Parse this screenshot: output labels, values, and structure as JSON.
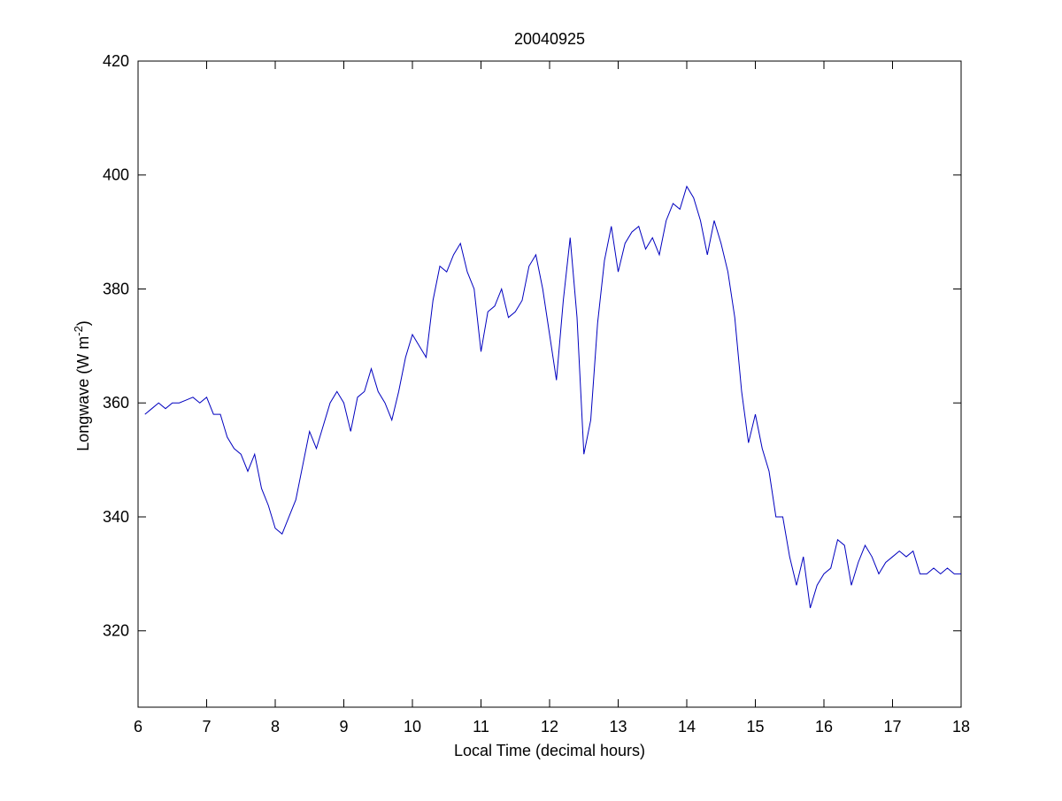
{
  "chart_data": {
    "type": "line",
    "title": "20040925",
    "xlabel": "Local Time (decimal hours)",
    "ylabel": {
      "text": "Longwave (W m",
      "superscript": "-2",
      "suffix": ")"
    },
    "x": [
      6.1,
      6.2,
      6.3,
      6.4,
      6.5,
      6.6,
      6.7,
      6.8,
      6.9,
      7.0,
      7.1,
      7.2,
      7.3,
      7.4,
      7.5,
      7.6,
      7.7,
      7.8,
      7.9,
      8.0,
      8.1,
      8.2,
      8.3,
      8.4,
      8.5,
      8.6,
      8.7,
      8.8,
      8.9,
      9.0,
      9.1,
      9.2,
      9.3,
      9.4,
      9.5,
      9.6,
      9.7,
      9.8,
      9.9,
      10.0,
      10.1,
      10.2,
      10.3,
      10.4,
      10.5,
      10.6,
      10.7,
      10.8,
      10.9,
      11.0,
      11.1,
      11.2,
      11.3,
      11.4,
      11.5,
      11.6,
      11.7,
      11.8,
      11.9,
      12.0,
      12.1,
      12.2,
      12.3,
      12.4,
      12.5,
      12.6,
      12.7,
      12.8,
      12.9,
      13.0,
      13.1,
      13.2,
      13.3,
      13.4,
      13.5,
      13.6,
      13.7,
      13.8,
      13.9,
      14.0,
      14.1,
      14.2,
      14.3,
      14.4,
      14.5,
      14.6,
      14.7,
      14.8,
      14.9,
      15.0,
      15.1,
      15.2,
      15.3,
      15.4,
      15.5,
      15.6,
      15.7,
      15.8,
      15.9,
      16.0,
      16.1,
      16.2,
      16.3,
      16.4,
      16.5,
      16.6,
      16.7,
      16.8,
      16.9,
      17.0,
      17.1,
      17.2,
      17.3,
      17.4,
      17.5,
      17.6,
      17.7,
      17.8,
      17.9,
      18.0
    ],
    "series": [
      {
        "name": "Longwave",
        "color": "#0000bf",
        "values": [
          358,
          359,
          360,
          359,
          360,
          360,
          360.5,
          361,
          360,
          361,
          358,
          358,
          354,
          352,
          351,
          348,
          351,
          345,
          342,
          338,
          337,
          340,
          343,
          349,
          355,
          352,
          356,
          360,
          362,
          360,
          355,
          361,
          362,
          366,
          362,
          360,
          357,
          362,
          368,
          372,
          370,
          368,
          378,
          384,
          383,
          386,
          388,
          383,
          380,
          369,
          376,
          377,
          380,
          375,
          376,
          378,
          384,
          386,
          380,
          372,
          364,
          378,
          389,
          375,
          351,
          357,
          374,
          385,
          391,
          383,
          388,
          390,
          391,
          387,
          389,
          386,
          392,
          395,
          394,
          398,
          396,
          392,
          386,
          392,
          388,
          383,
          375,
          362,
          353,
          358,
          352,
          348,
          340,
          340,
          333,
          328,
          333,
          324,
          328,
          330,
          331,
          336,
          335,
          328,
          332,
          335,
          333,
          330,
          332,
          333,
          334,
          333,
          334,
          330,
          330,
          331,
          330,
          331,
          330,
          330
        ]
      }
    ],
    "xlim": [
      6,
      18
    ],
    "xticks": [
      6,
      7,
      8,
      9,
      10,
      11,
      12,
      13,
      14,
      15,
      16,
      17,
      18
    ],
    "ylim": [
      306.6,
      420
    ],
    "yticks": [
      320,
      340,
      360,
      380,
      400,
      420
    ]
  }
}
